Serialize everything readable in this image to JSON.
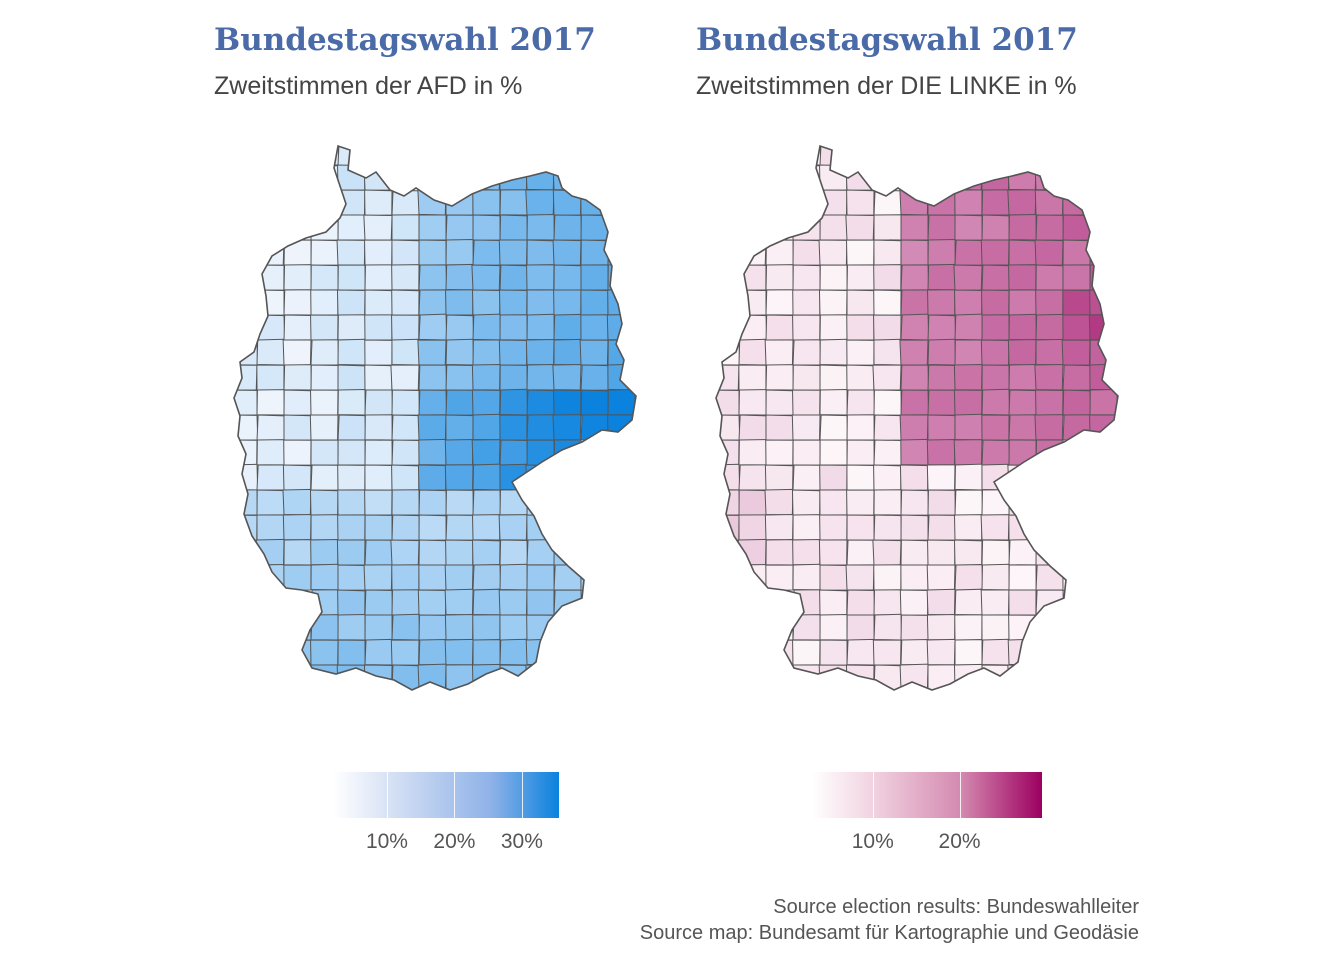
{
  "maps": [
    {
      "id": "afd",
      "title": "Bundestagswahl 2017",
      "subtitle": "Zweitstimmen der AFD in %",
      "color_low": "#f4f7fd",
      "color_high": "#0a82de",
      "legend": {
        "ticks": [
          10,
          20,
          30
        ],
        "labels": [
          "10%",
          "20%",
          "30%"
        ],
        "min": 2,
        "max": 35.5
      },
      "pattern": "east-south-high"
    },
    {
      "id": "linke",
      "title": "Bundestagswahl 2017",
      "subtitle": "Zweitstimmen der DIE LINKE in %",
      "color_low": "#fdf6f9",
      "color_high": "#9c0060",
      "legend": {
        "ticks": [
          10,
          20
        ],
        "labels": [
          "10%",
          "20%"
        ],
        "min": 3,
        "max": 29.5
      },
      "pattern": "east-high"
    }
  ],
  "colors": {
    "border": "#555555",
    "title": "#4a6aa8",
    "text": "#444444"
  },
  "source": {
    "line1": "Source election results: Bundeswahlleiter",
    "line2": "Source map: Bundesamt für Kartographie und Geodäsie"
  }
}
